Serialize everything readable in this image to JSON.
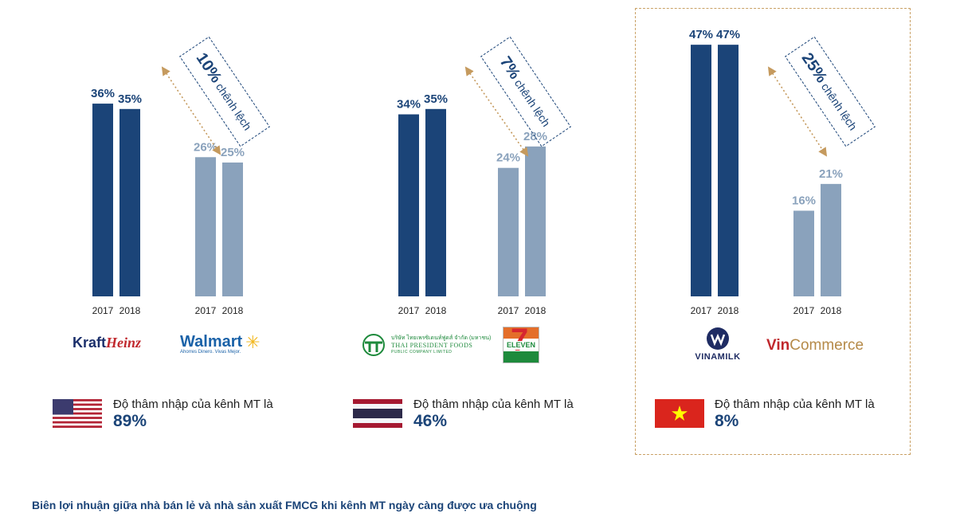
{
  "colors": {
    "manufacturer_bar": "#1b4478",
    "retailer_bar": "#8aa2bc",
    "manufacturer_label": "#1b4478",
    "retailer_label": "#8aa2bc",
    "arrow": "#c59a5e",
    "box_border": "#1b4478",
    "highlight_border": "#c9a064"
  },
  "chart_data": [
    {
      "type": "bar",
      "country": "US",
      "categories": [
        "2017",
        "2018"
      ],
      "series": [
        {
          "name": "KraftHeinz",
          "values": [
            36,
            35
          ]
        },
        {
          "name": "Walmart",
          "values": [
            26,
            25
          ]
        }
      ],
      "value_suffix": "%",
      "gap": {
        "value": "10%",
        "text": "chênh lệch"
      }
    },
    {
      "type": "bar",
      "country": "TH",
      "categories": [
        "2017",
        "2018"
      ],
      "series": [
        {
          "name": "Thai President Foods",
          "values": [
            34,
            35
          ]
        },
        {
          "name": "7-Eleven",
          "values": [
            24,
            28
          ]
        }
      ],
      "value_suffix": "%",
      "gap": {
        "value": "7%",
        "text": "chênh lệch"
      }
    },
    {
      "type": "bar",
      "country": "VN",
      "categories": [
        "2017",
        "2018"
      ],
      "series": [
        {
          "name": "VINAMILK",
          "values": [
            47,
            47
          ]
        },
        {
          "name": "VinCommerce",
          "values": [
            16,
            21
          ]
        }
      ],
      "value_suffix": "%",
      "gap": {
        "value": "25%",
        "text": "chênh lệch"
      }
    }
  ],
  "logos": {
    "kraft": "KraftHeinz",
    "kraft_a": "Kraft",
    "kraft_b": "Heinz",
    "walmart": "Walmart",
    "walmart_tagline": "Ahorres Dinero. Vivas Mejor.",
    "tpf_thai": "บริษัท ไทยเพรซิเดนท์ฟูดส์ จำกัด (มหาชน)",
    "tpf_en": "THAI PRESIDENT FOODS",
    "tpf_sub": "PUBLIC COMPANY LIMITED",
    "seven_num": "7",
    "seven_text": "ELEVEN",
    "vinamilk": "VINAMILK",
    "vincommerce_a": "Vin",
    "vincommerce_b": "Commerce"
  },
  "penetration": [
    {
      "text": "Độ thâm nhập của kênh MT là",
      "value": "89%",
      "flag": "us-flag"
    },
    {
      "text": "Độ thâm nhập của kênh MT là",
      "value": "46%",
      "flag": "thailand-flag"
    },
    {
      "text": "Độ thâm nhập của kênh MT là",
      "value": "8%",
      "flag": "vietnam-flag"
    }
  ],
  "caption": "Biên lợi nhuận giữa nhà bán lẻ và nhà sản xuất FMCG khi kênh MT ngày càng được ưa chuộng"
}
